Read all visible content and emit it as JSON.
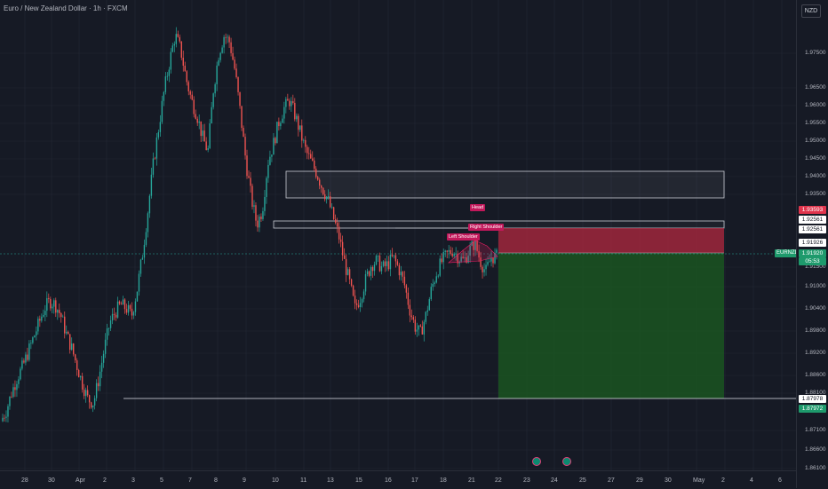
{
  "header": {
    "title": "Euro / New Zealand Dollar · 1h · FXCM"
  },
  "price_scale": {
    "currency": "NZD",
    "ticks": [
      "1.97500",
      "1.96500",
      "1.96000",
      "1.95500",
      "1.95000",
      "1.94500",
      "1.94000",
      "1.93500",
      "1.91500",
      "1.91000",
      "1.90400",
      "1.89800",
      "1.89200",
      "1.88600",
      "1.88100",
      "1.87100",
      "1.86600",
      "1.86100"
    ],
    "labels": {
      "stop": "1.93593",
      "level_a": "1.92561",
      "level_b": "1.92561",
      "current_a": "1.91926",
      "current_b": "1.91920",
      "countdown": "05:53",
      "target_a": "1.87978",
      "target_b": "1.87972"
    },
    "symbol_tag": "EURNZD"
  },
  "time_axis": {
    "labels": [
      "28",
      "30",
      "Apr",
      "2",
      "3",
      "5",
      "7",
      "8",
      "9",
      "10",
      "11",
      "13",
      "15",
      "16",
      "17",
      "18",
      "21",
      "22",
      "23",
      "24",
      "25",
      "27",
      "29",
      "30",
      "May",
      "2",
      "4",
      "6"
    ]
  },
  "annotations": {
    "head": "Head",
    "left_shoulder": "Left Shoulder",
    "right_shoulder": "Right Shoulder"
  },
  "colors": {
    "up": "#26a69a",
    "down": "#ef5350",
    "stop_zone": "#b2283f",
    "target_zone": "#1b5e20",
    "background": "#161a25"
  },
  "chart_data": {
    "type": "candlestick",
    "symbol": "EURNZD",
    "interval": "1h",
    "stop_price": 1.93593,
    "neckline": 1.92561,
    "entry_price": 1.91926,
    "target_price": 1.87978,
    "current_price": 1.9192,
    "supply_zone": [
      1.935,
      1.9415
    ],
    "close_path": [
      1.874,
      1.877,
      1.882,
      1.886,
      1.889,
      1.893,
      1.897,
      1.901,
      1.905,
      1.907,
      1.906,
      1.903,
      1.898,
      1.894,
      1.889,
      1.884,
      1.88,
      1.879,
      1.886,
      1.894,
      1.901,
      1.904,
      1.906,
      1.905,
      1.903,
      1.91,
      1.92,
      1.932,
      1.945,
      1.955,
      1.965,
      1.973,
      1.98,
      1.976,
      1.968,
      1.962,
      1.958,
      1.952,
      1.948,
      1.965,
      1.975,
      1.98,
      1.978,
      1.97,
      1.958,
      1.945,
      1.935,
      1.928,
      1.932,
      1.945,
      1.95,
      1.956,
      1.96,
      1.962,
      1.958,
      1.953,
      1.948,
      1.945,
      1.942,
      1.938,
      1.935,
      1.93,
      1.925,
      1.918,
      1.912,
      1.905,
      1.908,
      1.913,
      1.917,
      1.918,
      1.916,
      1.917,
      1.919,
      1.916,
      1.912,
      1.905,
      1.9,
      1.898,
      1.903,
      1.91,
      1.915,
      1.918,
      1.92,
      1.921,
      1.919,
      1.918,
      1.921,
      1.923,
      1.918,
      1.915,
      1.919,
      1.9192
    ]
  }
}
